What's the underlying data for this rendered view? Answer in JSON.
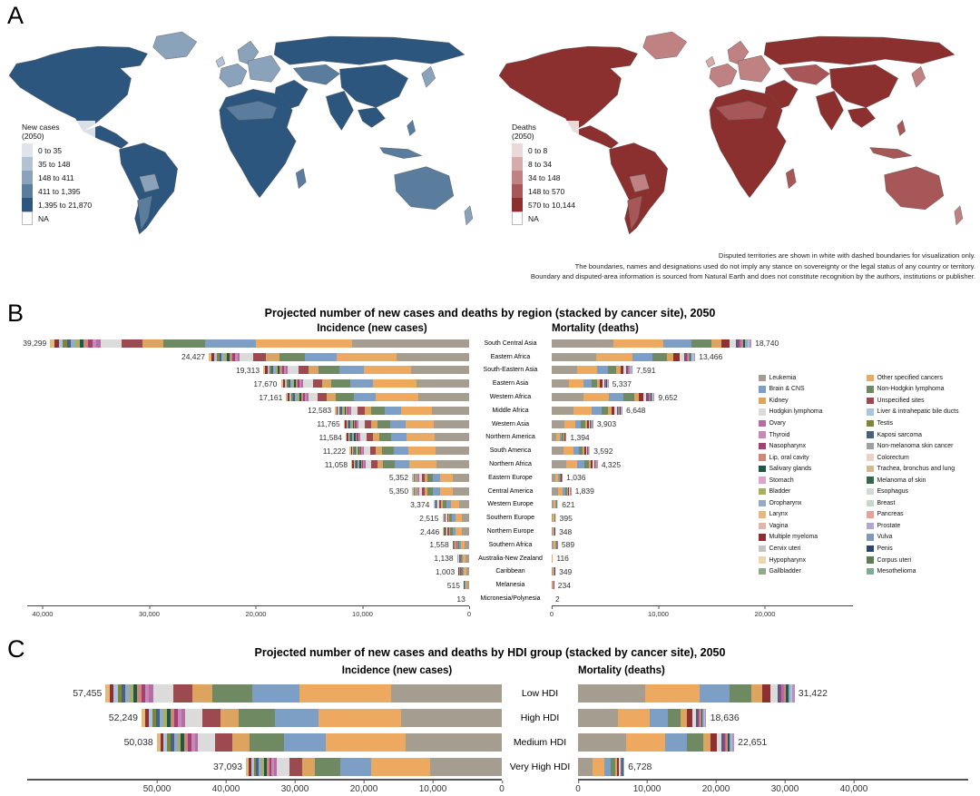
{
  "figure": {
    "panel_a_label": "A",
    "panel_b_label": "B",
    "panel_c_label": "C"
  },
  "maps": {
    "new_cases": {
      "title_line1": "New cases",
      "title_line2": "(2050)",
      "classes": [
        {
          "label": "0 to 35",
          "color": "#dfe4eb"
        },
        {
          "label": "35 to 148",
          "color": "#b3c2d3"
        },
        {
          "label": "148 to 411",
          "color": "#8aa2ba"
        },
        {
          "label": "411 to 1,395",
          "color": "#5a7d9e"
        },
        {
          "label": "1,395 to 21,870",
          "color": "#2d567e"
        },
        {
          "label": "NA",
          "color": "#ffffff"
        }
      ]
    },
    "deaths": {
      "title_line1": "Deaths",
      "title_line2": "(2050)",
      "classes": [
        {
          "label": "0 to 8",
          "color": "#ead9d9"
        },
        {
          "label": "8 to 34",
          "color": "#d6abab"
        },
        {
          "label": "34 to 148",
          "color": "#bf8181"
        },
        {
          "label": "148 to 570",
          "color": "#a75757"
        },
        {
          "label": "570 to 10,144",
          "color": "#8c2f2f"
        },
        {
          "label": "NA",
          "color": "#ffffff"
        }
      ]
    },
    "footnotes": [
      "Disputed territories are shown in white with dashed boundaries for visualization only.",
      "The boundaries, names and designations used do not imply any stance on sovereignty or the legal status of any country or territory.",
      "Boundary and disputed-area information is sourced from Natural Earth and does not constitute recognition by the authors, institutions or publisher."
    ]
  },
  "cancer_site_legend": {
    "col1": [
      {
        "name": "Leukemia",
        "color": "#a59d90"
      },
      {
        "name": "Brain & CNS",
        "color": "#7d9fc6"
      },
      {
        "name": "Kidney",
        "color": "#dca45f"
      },
      {
        "name": "Hodgkin lymphoma",
        "color": "#dbdbdb"
      },
      {
        "name": "Ovary",
        "color": "#b56da5"
      },
      {
        "name": "Thyroid",
        "color": "#c489b4"
      },
      {
        "name": "Nasopharynx",
        "color": "#a23f77"
      },
      {
        "name": "Lip, oral cavity",
        "color": "#cd8878"
      },
      {
        "name": "Salivary glands",
        "color": "#1d5948"
      },
      {
        "name": "Stomach",
        "color": "#dfa3cc"
      },
      {
        "name": "Bladder",
        "color": "#a9ae62"
      },
      {
        "name": "Oropharynx",
        "color": "#93abc7"
      },
      {
        "name": "Larynx",
        "color": "#e4b97e"
      },
      {
        "name": "Vagina",
        "color": "#e2b4ac"
      },
      {
        "name": "Multiple myeloma",
        "color": "#8e2f32"
      },
      {
        "name": "Cervix uteri",
        "color": "#c4c4c4"
      },
      {
        "name": "Hypopharynx",
        "color": "#ecd6b0"
      },
      {
        "name": "Gallbladder",
        "color": "#93aa8a"
      }
    ],
    "col2": [
      {
        "name": "Other specified cancers",
        "color": "#eca95f"
      },
      {
        "name": "Non-Hodgkin lymphoma",
        "color": "#6f8a62"
      },
      {
        "name": "Unspecified sites",
        "color": "#9c4a50"
      },
      {
        "name": "Liver & intrahepatic bile ducts",
        "color": "#abc5e1"
      },
      {
        "name": "Testis",
        "color": "#7d8639"
      },
      {
        "name": "Kaposi sarcoma",
        "color": "#47617e"
      },
      {
        "name": "Non-melanoma skin cancer",
        "color": "#9ba1a4"
      },
      {
        "name": "Colorectum",
        "color": "#ecd1c9"
      },
      {
        "name": "Trachea, bronchus and lung",
        "color": "#d9b98b"
      },
      {
        "name": "Melanoma of skin",
        "color": "#33684f"
      },
      {
        "name": "Esophagus",
        "color": "#d5d9d6"
      },
      {
        "name": "Breast",
        "color": "#c3d9c9"
      },
      {
        "name": "Pancreas",
        "color": "#e7a19b"
      },
      {
        "name": "Prostate",
        "color": "#b4a7cd"
      },
      {
        "name": "Vulva",
        "color": "#7e9ab6"
      },
      {
        "name": "Penis",
        "color": "#2b4571"
      },
      {
        "name": "Corpus uteri",
        "color": "#5c7d50"
      },
      {
        "name": "Mesothelioma",
        "color": "#80ac97"
      }
    ]
  },
  "stack_profiles": {
    "incidence": [
      {
        "color": "#a59d90",
        "frac": 0.28
      },
      {
        "color": "#eca95f",
        "frac": 0.23
      },
      {
        "color": "#7d9fc6",
        "frac": 0.12
      },
      {
        "color": "#6f8a62",
        "frac": 0.1
      },
      {
        "color": "#dca45f",
        "frac": 0.05
      },
      {
        "color": "#9c4a50",
        "frac": 0.05
      },
      {
        "color": "#dbdbdb",
        "frac": 0.05
      },
      {
        "color": "#b56da5",
        "frac": 0.01
      },
      {
        "color": "#c489b4",
        "frac": 0.01
      },
      {
        "color": "#a23f77",
        "frac": 0.01
      },
      {
        "color": "#cd8878",
        "frac": 0.01
      },
      {
        "color": "#1d5948",
        "frac": 0.01
      },
      {
        "color": "#a9ae62",
        "frac": 0.01
      },
      {
        "color": "#93abc7",
        "frac": 0.01
      },
      {
        "color": "#47617e",
        "frac": 0.01
      },
      {
        "color": "#7d8639",
        "frac": 0.01
      },
      {
        "color": "#abc5e1",
        "frac": 0.01
      },
      {
        "color": "#8e2f32",
        "frac": 0.01
      },
      {
        "color": "#e4b97e",
        "frac": 0.01
      }
    ],
    "mortality": [
      {
        "color": "#a59d90",
        "frac": 0.31
      },
      {
        "color": "#eca95f",
        "frac": 0.25
      },
      {
        "color": "#7d9fc6",
        "frac": 0.14
      },
      {
        "color": "#6f8a62",
        "frac": 0.1
      },
      {
        "color": "#dca45f",
        "frac": 0.05
      },
      {
        "color": "#8e2f32",
        "frac": 0.04
      },
      {
        "color": "#dbdbdb",
        "frac": 0.03
      },
      {
        "color": "#47617e",
        "frac": 0.01
      },
      {
        "color": "#a23f77",
        "frac": 0.01
      },
      {
        "color": "#b56da5",
        "frac": 0.01
      },
      {
        "color": "#cd8878",
        "frac": 0.01
      },
      {
        "color": "#1d5948",
        "frac": 0.01
      },
      {
        "color": "#93abc7",
        "frac": 0.01
      },
      {
        "color": "#abc5e1",
        "frac": 0.01
      },
      {
        "color": "#c489b4",
        "frac": 0.01
      }
    ]
  },
  "chart_data": [
    {
      "type": "bar",
      "id": "region",
      "orientation": "horizontal-diverging-stacked",
      "title": "Projected number of new cases and deaths by region (stacked by cancer site), 2050",
      "left_header": "Incidence (new cases)",
      "right_header": "Mortality (deaths)",
      "categories": [
        "South Central Asia",
        "Eastern Africa",
        "South-Eastern Asia",
        "Eastern Asia",
        "Western Africa",
        "Middle Africa",
        "Western Asia",
        "Northern America",
        "South America",
        "Northern Africa",
        "Eastern Europe",
        "Central America",
        "Western Europe",
        "Southern Europe",
        "Northern Europe",
        "Southern Africa",
        "Australia-New Zealand",
        "Caribbean",
        "Melanesia",
        "Micronesia/Polynesia"
      ],
      "series": [
        {
          "name": "Incidence (new cases)",
          "values": [
            39299,
            24427,
            19313,
            17670,
            17161,
            12583,
            11765,
            11584,
            11222,
            11058,
            5352,
            5350,
            3374,
            2515,
            2446,
            1558,
            1138,
            1003,
            515,
            13
          ]
        },
        {
          "name": "Mortality (deaths)",
          "values": [
            18740,
            13466,
            7591,
            5337,
            9652,
            6648,
            3903,
            1394,
            3592,
            4325,
            1036,
            1839,
            621,
            395,
            348,
            589,
            116,
            349,
            234,
            2
          ]
        }
      ],
      "left_axis_ticks": [
        40000,
        30000,
        20000,
        10000,
        0
      ],
      "right_axis_ticks": [
        0,
        10000,
        20000
      ],
      "xlim_left": [
        0,
        41500
      ],
      "xlim_right": [
        0,
        28000
      ],
      "stacked_by": "cancer site"
    },
    {
      "type": "bar",
      "id": "hdi",
      "orientation": "horizontal-diverging-stacked",
      "title": "Projected number of new cases and deaths by HDI group (stacked by cancer site), 2050",
      "left_header": "Incidence (new cases)",
      "right_header": "Mortality (deaths)",
      "categories": [
        "Low HDI",
        "High HDI",
        "Medium HDI",
        "Very High HDI"
      ],
      "series": [
        {
          "name": "Incidence (new cases)",
          "values": [
            57455,
            52249,
            50038,
            37093
          ]
        },
        {
          "name": "Mortality (deaths)",
          "values": [
            31422,
            18636,
            22651,
            6728
          ]
        }
      ],
      "left_axis_ticks": [
        50000,
        40000,
        30000,
        20000,
        10000,
        0
      ],
      "right_axis_ticks": [
        0,
        10000,
        20000,
        30000,
        40000
      ],
      "xlim_left": [
        0,
        69000
      ],
      "xlim_right": [
        0,
        56000
      ],
      "stacked_by": "cancer site"
    }
  ]
}
